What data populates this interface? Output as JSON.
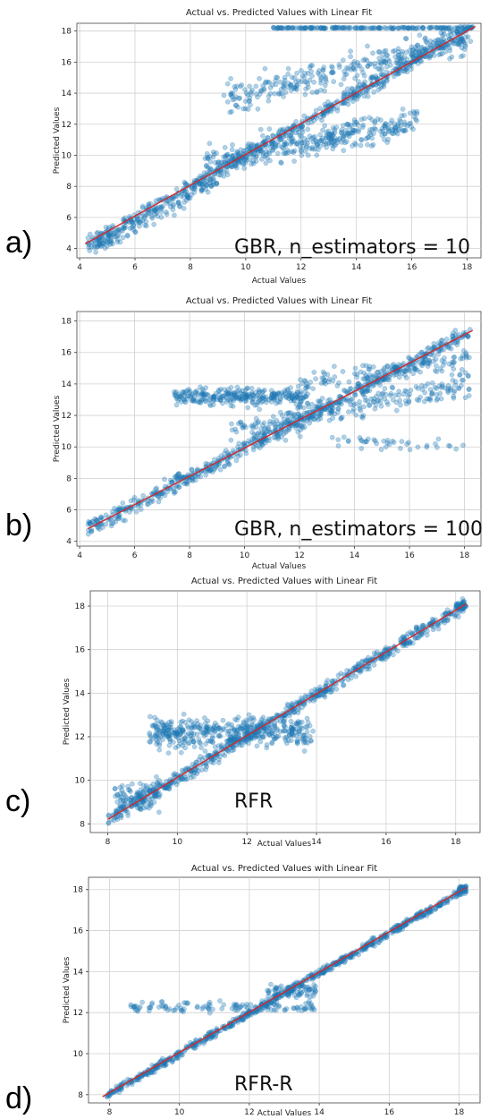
{
  "chart_data": [
    {
      "type": "scatter",
      "panel_letter": "a)",
      "title": "Actual vs. Predicted Values with Linear Fit",
      "xlabel": "Actual Values",
      "ylabel": "Predicted Values",
      "annotation": "GBR, n_estimators = 10",
      "xlim": [
        3.9,
        18.5
      ],
      "ylim": [
        3.4,
        18.5
      ],
      "xticks": [
        4,
        6,
        8,
        10,
        12,
        14,
        16,
        18
      ],
      "yticks": [
        4,
        6,
        8,
        10,
        12,
        14,
        16,
        18
      ],
      "grid": true,
      "series": [
        {
          "type": "scatter",
          "color": "#1f77b4"
        },
        {
          "type": "line",
          "color": "#d62728",
          "x": [
            4.2,
            18.3
          ],
          "y": [
            4.3,
            18.3
          ]
        }
      ]
    },
    {
      "type": "scatter",
      "panel_letter": "b)",
      "title": "Actual vs. Predicted Values with Linear Fit",
      "xlabel": "Actual Values",
      "ylabel": "Predicted Values",
      "annotation": "GBR, n_estimators = 100",
      "xlim": [
        3.9,
        18.6
      ],
      "ylim": [
        3.7,
        18.6
      ],
      "xticks": [
        4,
        6,
        8,
        10,
        12,
        14,
        16,
        18
      ],
      "yticks": [
        4,
        6,
        8,
        10,
        12,
        14,
        16,
        18
      ],
      "grid": true,
      "series": [
        {
          "type": "scatter",
          "color": "#1f77b4"
        },
        {
          "type": "line",
          "color": "#d62728",
          "x": [
            4.3,
            18.3
          ],
          "y": [
            4.8,
            17.4
          ]
        }
      ]
    },
    {
      "type": "scatter",
      "panel_letter": "c)",
      "title": "Actual vs. Predicted Values with Linear Fit",
      "xlabel": "Actual Values",
      "ylabel": "Predicted Values",
      "annotation": "RFR",
      "xlim": [
        7.5,
        18.7
      ],
      "ylim": [
        7.6,
        18.7
      ],
      "xticks": [
        8,
        10,
        12,
        14,
        16,
        18
      ],
      "yticks": [
        8,
        10,
        12,
        14,
        16,
        18
      ],
      "grid": true,
      "series": [
        {
          "type": "scatter",
          "color": "#1f77b4"
        },
        {
          "type": "line",
          "color": "#d62728",
          "x": [
            8.0,
            18.3
          ],
          "y": [
            8.2,
            18.1
          ]
        }
      ]
    },
    {
      "type": "scatter",
      "panel_letter": "d)",
      "title": "Actual vs. Predicted Values with Linear Fit",
      "xlabel": "Actual Values",
      "ylabel": "Predicted Values",
      "annotation": "RFR-R",
      "xlim": [
        7.4,
        18.6
      ],
      "ylim": [
        7.6,
        18.6
      ],
      "xticks": [
        8,
        10,
        12,
        14,
        16,
        18
      ],
      "yticks": [
        8,
        10,
        12,
        14,
        16,
        18
      ],
      "grid": true,
      "series": [
        {
          "type": "scatter",
          "color": "#1f77b4"
        },
        {
          "type": "line",
          "color": "#d62728",
          "x": [
            7.8,
            18.2
          ],
          "y": [
            7.9,
            18.1
          ]
        }
      ]
    }
  ]
}
